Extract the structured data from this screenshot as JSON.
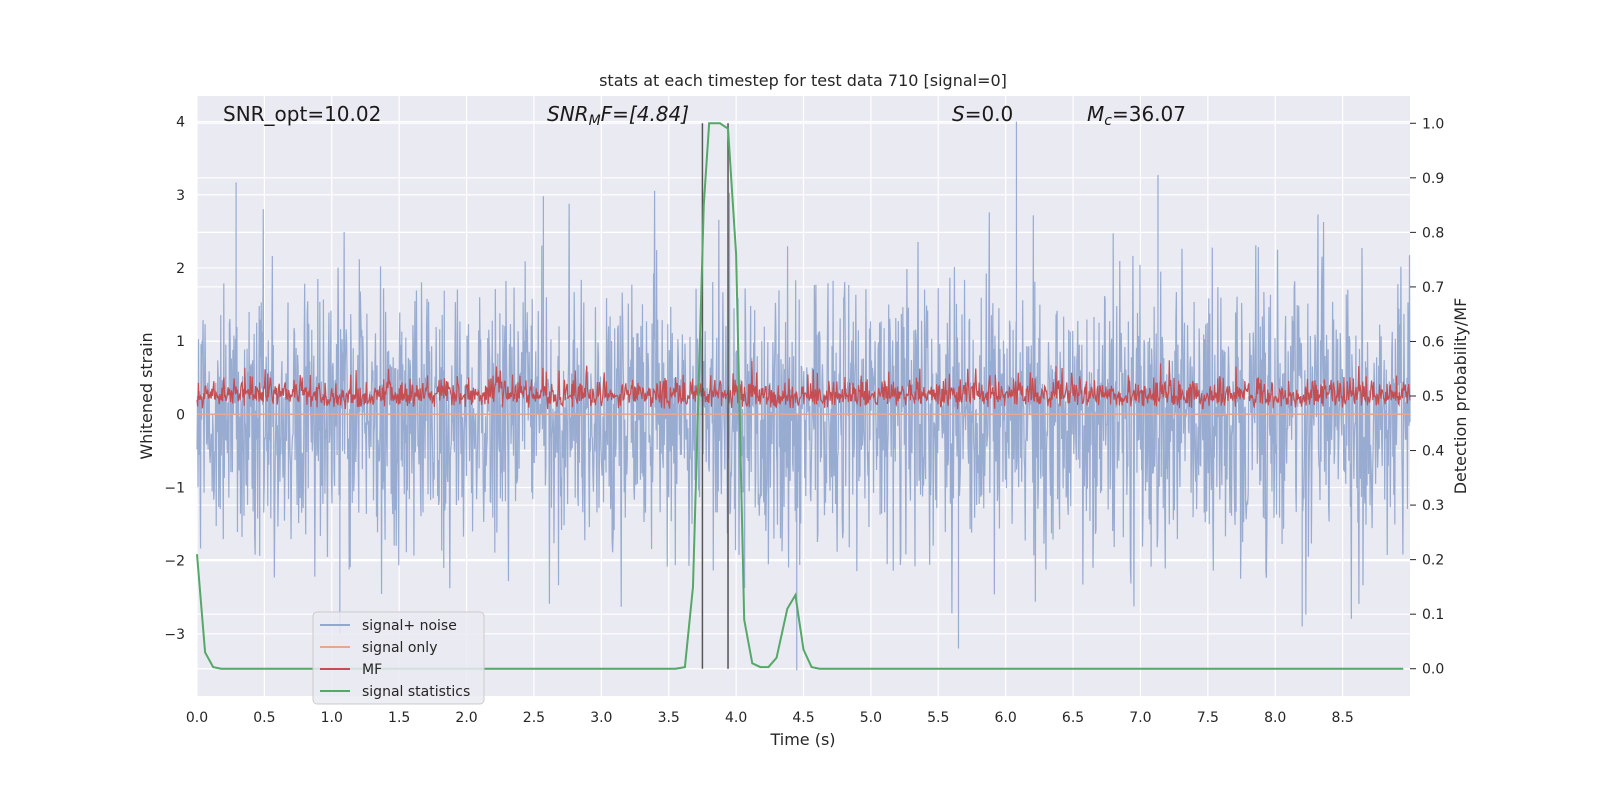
{
  "chart_data": {
    "type": "line",
    "title": "stats at each timestep for test data 710 [signal=0]",
    "xlabel": "Time (s)",
    "ylabel_left": "Whitened strain",
    "ylabel_right": "Detection probability/MF",
    "xlim": [
      0.0,
      9.0
    ],
    "ylim_left": [
      -3.85,
      4.35
    ],
    "ylim_right": [
      -0.05,
      1.05
    ],
    "x_ticks": [
      "0.0",
      "0.5",
      "1.0",
      "1.5",
      "2.0",
      "2.5",
      "3.0",
      "3.5",
      "4.0",
      "4.5",
      "5.0",
      "5.5",
      "6.0",
      "6.5",
      "7.0",
      "7.5",
      "8.0",
      "8.5"
    ],
    "y_ticks_left": [
      "4",
      "3",
      "2",
      "1",
      "0",
      "−1",
      "−2",
      "−3"
    ],
    "y_ticks_right": [
      "1.0",
      "0.9",
      "0.8",
      "0.7",
      "0.6",
      "0.5",
      "0.4",
      "0.3",
      "0.2",
      "0.1",
      "0.0"
    ],
    "grid": true,
    "legend_position": "lower-left",
    "annotations": {
      "snr_opt": "SNR_opt=10.02",
      "snr_mf_var": "SNR",
      "snr_mf_sub": "M",
      "snr_mf_rest": "F=[4.84]",
      "s_var": "S",
      "s_rest": "=0.0",
      "mc_var": "M",
      "mc_sub": "c",
      "mc_rest": "=36.07"
    },
    "vertical_lines_x": [
      3.75,
      3.94
    ],
    "series": [
      {
        "name": "signal+ noise",
        "color": "#94a8cf",
        "description_amplitude": "noise between about -3.5 and 4.0 around 0",
        "envelope_pos": 1.0,
        "envelope_neg": -1.0,
        "spike_max": 4.0,
        "spike_min": -3.5
      },
      {
        "name": "signal only",
        "color": "#e8a58f",
        "values_note": "flat at 0"
      },
      {
        "name": "MF",
        "color": "#c44e52",
        "axis": "right",
        "baseline": 0.5,
        "range": [
          0.47,
          0.6
        ]
      },
      {
        "name": "signal statistics",
        "color": "#55a868",
        "axis": "right",
        "x": [
          0.0,
          0.06,
          0.12,
          0.18,
          0.25,
          0.5,
          1.0,
          2.0,
          3.0,
          3.55,
          3.62,
          3.68,
          3.72,
          3.76,
          3.8,
          3.88,
          3.94,
          4.0,
          4.06,
          4.12,
          4.18,
          4.24,
          4.3,
          4.38,
          4.44,
          4.5,
          4.56,
          4.62,
          5.0,
          6.0,
          7.0,
          8.0,
          8.95
        ],
        "y": [
          0.21,
          0.03,
          0.003,
          0.0,
          0.0,
          0.0,
          0.0,
          0.0,
          0.0,
          0.0,
          0.003,
          0.15,
          0.5,
          0.85,
          1.0,
          1.0,
          0.99,
          0.76,
          0.09,
          0.01,
          0.003,
          0.003,
          0.02,
          0.11,
          0.135,
          0.035,
          0.003,
          0.0,
          0.0,
          0.0,
          0.0,
          0.0,
          0.0
        ]
      }
    ]
  }
}
